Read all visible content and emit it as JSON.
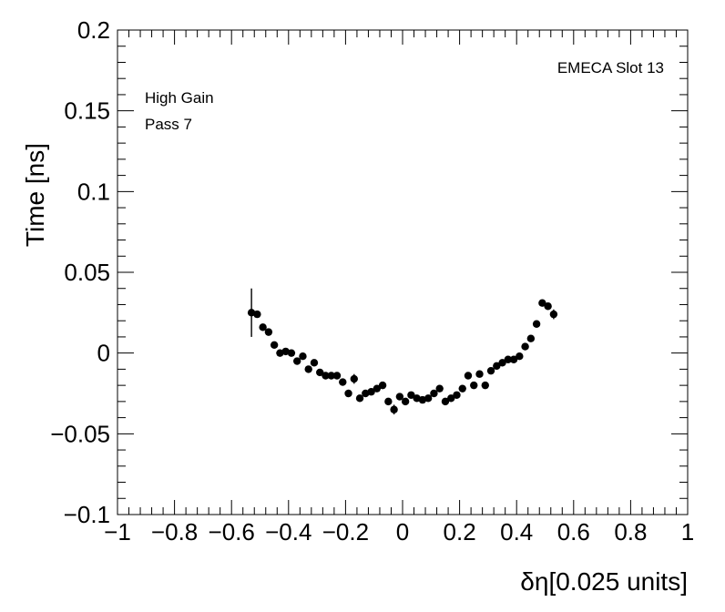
{
  "chart_data": {
    "type": "scatter",
    "xlabel": "δη[0.025 units]",
    "ylabel": "Time [ns]",
    "xlim": [
      -1,
      1
    ],
    "ylim": [
      -0.1,
      0.2
    ],
    "x_ticks": [
      -1,
      -0.8,
      -0.6,
      -0.4,
      -0.2,
      0,
      0.2,
      0.4,
      0.6,
      0.8,
      1
    ],
    "x_tick_labels": [
      "−1",
      "−0.8",
      "−0.6",
      "−0.4",
      "−0.2",
      "0",
      "0.2",
      "0.4",
      "0.6",
      "0.8",
      "1"
    ],
    "y_ticks": [
      -0.1,
      -0.05,
      0,
      0.05,
      0.1,
      0.15,
      0.2
    ],
    "y_tick_labels": [
      "−0.1",
      "−0.05",
      "0",
      "0.05",
      "0.1",
      "0.15",
      "0.2"
    ],
    "annotations": {
      "top_right": "EMECA Slot 13",
      "line1": "High Gain",
      "line2": "Pass 7"
    },
    "grid": false,
    "error_bar_note_hidden": true,
    "points": [
      {
        "x": -0.53,
        "y": 0.025,
        "err": 0.015
      },
      {
        "x": -0.51,
        "y": 0.024,
        "err": 0.002
      },
      {
        "x": -0.49,
        "y": 0.016,
        "err": 0.002
      },
      {
        "x": -0.47,
        "y": 0.013,
        "err": 0.002
      },
      {
        "x": -0.45,
        "y": 0.005,
        "err": 0.002
      },
      {
        "x": -0.43,
        "y": 0.0,
        "err": 0.002
      },
      {
        "x": -0.41,
        "y": 0.001,
        "err": 0.002
      },
      {
        "x": -0.39,
        "y": 0.0,
        "err": 0.002
      },
      {
        "x": -0.37,
        "y": -0.005,
        "err": 0.002
      },
      {
        "x": -0.35,
        "y": -0.002,
        "err": 0.002
      },
      {
        "x": -0.33,
        "y": -0.01,
        "err": 0.002
      },
      {
        "x": -0.31,
        "y": -0.006,
        "err": 0.002
      },
      {
        "x": -0.29,
        "y": -0.012,
        "err": 0.002
      },
      {
        "x": -0.27,
        "y": -0.014,
        "err": 0.002
      },
      {
        "x": -0.25,
        "y": -0.014,
        "err": 0.002
      },
      {
        "x": -0.23,
        "y": -0.014,
        "err": 0.002
      },
      {
        "x": -0.21,
        "y": -0.018,
        "err": 0.002
      },
      {
        "x": -0.19,
        "y": -0.025,
        "err": 0.002
      },
      {
        "x": -0.17,
        "y": -0.016,
        "err": 0.003
      },
      {
        "x": -0.15,
        "y": -0.028,
        "err": 0.002
      },
      {
        "x": -0.13,
        "y": -0.025,
        "err": 0.002
      },
      {
        "x": -0.11,
        "y": -0.024,
        "err": 0.002
      },
      {
        "x": -0.09,
        "y": -0.022,
        "err": 0.002
      },
      {
        "x": -0.07,
        "y": -0.02,
        "err": 0.002
      },
      {
        "x": -0.05,
        "y": -0.03,
        "err": 0.002
      },
      {
        "x": -0.03,
        "y": -0.035,
        "err": 0.003
      },
      {
        "x": -0.01,
        "y": -0.027,
        "err": 0.002
      },
      {
        "x": 0.01,
        "y": -0.03,
        "err": 0.002
      },
      {
        "x": 0.03,
        "y": -0.026,
        "err": 0.002
      },
      {
        "x": 0.05,
        "y": -0.028,
        "err": 0.002
      },
      {
        "x": 0.07,
        "y": -0.029,
        "err": 0.002
      },
      {
        "x": 0.09,
        "y": -0.028,
        "err": 0.002
      },
      {
        "x": 0.11,
        "y": -0.025,
        "err": 0.002
      },
      {
        "x": 0.13,
        "y": -0.022,
        "err": 0.002
      },
      {
        "x": 0.15,
        "y": -0.03,
        "err": 0.002
      },
      {
        "x": 0.17,
        "y": -0.028,
        "err": 0.002
      },
      {
        "x": 0.19,
        "y": -0.026,
        "err": 0.002
      },
      {
        "x": 0.21,
        "y": -0.022,
        "err": 0.002
      },
      {
        "x": 0.23,
        "y": -0.014,
        "err": 0.002
      },
      {
        "x": 0.25,
        "y": -0.02,
        "err": 0.002
      },
      {
        "x": 0.27,
        "y": -0.013,
        "err": 0.002
      },
      {
        "x": 0.29,
        "y": -0.02,
        "err": 0.002
      },
      {
        "x": 0.31,
        "y": -0.011,
        "err": 0.002
      },
      {
        "x": 0.33,
        "y": -0.008,
        "err": 0.002
      },
      {
        "x": 0.35,
        "y": -0.006,
        "err": 0.002
      },
      {
        "x": 0.37,
        "y": -0.004,
        "err": 0.002
      },
      {
        "x": 0.39,
        "y": -0.004,
        "err": 0.002
      },
      {
        "x": 0.41,
        "y": -0.002,
        "err": 0.002
      },
      {
        "x": 0.43,
        "y": 0.004,
        "err": 0.002
      },
      {
        "x": 0.45,
        "y": 0.009,
        "err": 0.002
      },
      {
        "x": 0.47,
        "y": 0.018,
        "err": 0.002
      },
      {
        "x": 0.49,
        "y": 0.031,
        "err": 0.002
      },
      {
        "x": 0.51,
        "y": 0.029,
        "err": 0.002
      },
      {
        "x": 0.53,
        "y": 0.024,
        "err": 0.003
      }
    ],
    "marker_color": "#000000"
  }
}
